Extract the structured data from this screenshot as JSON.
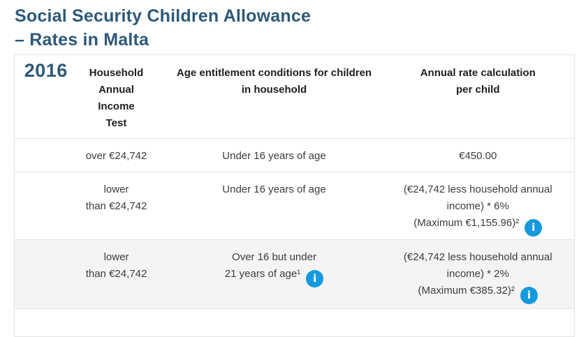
{
  "title": {
    "line1": "Social Security Children Allowance",
    "line2": "– Rates in Malta"
  },
  "table": {
    "year": "2016",
    "headers": {
      "income": [
        "Household",
        "Annual",
        "Income",
        "Test"
      ],
      "age": [
        "Age entitlement conditions for children",
        "in household"
      ],
      "rate": [
        "Annual rate calculation",
        "per child"
      ]
    },
    "rows": [
      {
        "income": [
          "over €24,742"
        ],
        "age": [
          "Under 16 years of age"
        ],
        "rate": [
          "€450.00"
        ]
      },
      {
        "income": [
          "lower",
          "than €24,742"
        ],
        "age": [
          "Under 16 years of age"
        ],
        "rate": [
          "(€24,742 less household annual",
          "income) * 6%",
          "(Maximum €1,155.96)²"
        ]
      },
      {
        "income": [
          "lower",
          "than €24,742"
        ],
        "age": [
          "Over 16 but under",
          "21 years of age¹"
        ],
        "rate": [
          "(€24,742 less household annual",
          "income) * 2%",
          "(Maximum €385.32)²"
        ]
      }
    ]
  },
  "icons": {
    "info": "i"
  },
  "colors": {
    "title_blue": "#2e5978",
    "info_icon_blue": "#1699dd",
    "shaded_row": "#f5f4f4",
    "border": "#e3e3e3"
  }
}
